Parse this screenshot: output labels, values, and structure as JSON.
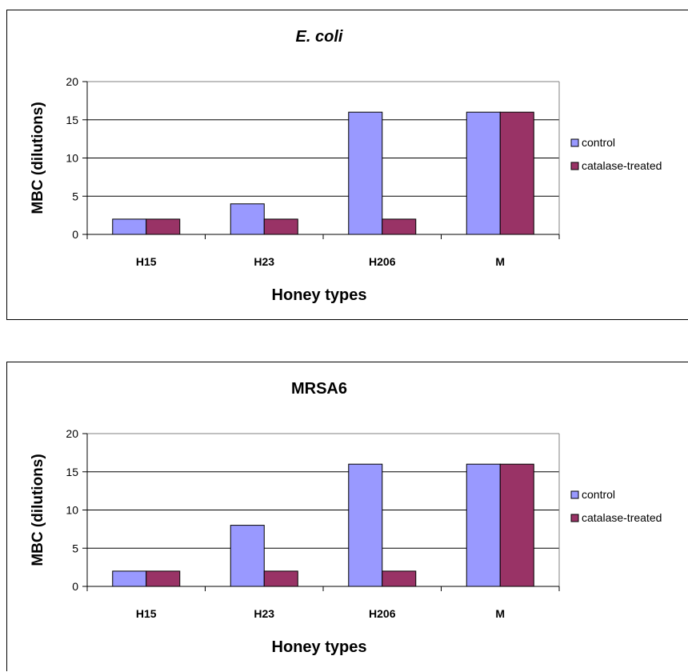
{
  "chart_data": [
    {
      "type": "bar",
      "title": "E. coli",
      "title_italic": true,
      "xlabel": "Honey types",
      "ylabel": "MBC (dilutions)",
      "categories": [
        "H15",
        "H23",
        "H206",
        "M"
      ],
      "ylim": [
        0,
        20
      ],
      "yticks": [
        "0",
        "5",
        "10",
        "15",
        "20"
      ],
      "grid": true,
      "legend_position": "right",
      "series": [
        {
          "name": "control",
          "values": [
            2,
            4,
            16,
            16
          ],
          "color": "#9999ff"
        },
        {
          "name": "catalase-treated",
          "values": [
            2,
            2,
            2,
            16
          ],
          "color": "#993366"
        }
      ]
    },
    {
      "type": "bar",
      "title": "MRSA6",
      "title_italic": false,
      "xlabel": "Honey types",
      "ylabel": "MBC (dilutions)",
      "categories": [
        "H15",
        "H23",
        "H206",
        "M"
      ],
      "ylim": [
        0,
        20
      ],
      "yticks": [
        "0",
        "5",
        "10",
        "15",
        "20"
      ],
      "grid": true,
      "legend_position": "right",
      "series": [
        {
          "name": "control",
          "values": [
            2,
            8,
            16,
            16
          ],
          "color": "#9999ff"
        },
        {
          "name": "catalase-treated",
          "values": [
            2,
            2,
            2,
            16
          ],
          "color": "#993366"
        }
      ]
    }
  ]
}
